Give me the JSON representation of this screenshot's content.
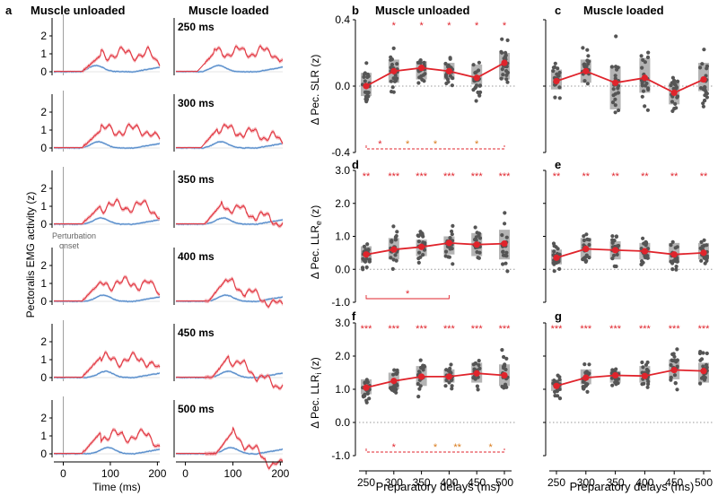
{
  "colors": {
    "unloaded_trace": "#e0303a",
    "unloaded_band": "#f2a0a6",
    "loaded_trace": "#4f86c6",
    "loaded_band": "#a8c6e8",
    "box": "#b4b4b4",
    "dot": "#555555",
    "mean_line": "#e0242c",
    "sig_red": "#e0242c",
    "sig_orange": "#d97a1a",
    "zero_line": "#999999"
  },
  "panel_a": {
    "letter": "a",
    "col_titles": [
      "Muscle unloaded",
      "Muscle loaded"
    ],
    "ylabel": "Pectoralis EMG activity (z)",
    "xlabel": "Time (ms)",
    "yticks": [
      "0",
      "1",
      "2"
    ],
    "xticks": [
      "0",
      "100",
      "200"
    ],
    "annotation": [
      "Perturbation",
      "onset"
    ],
    "delays": [
      "250 ms",
      "300 ms",
      "350 ms",
      "400 ms",
      "450 ms",
      "500 ms"
    ],
    "onset_ms_loaded": [
      20,
      10,
      10,
      10,
      10,
      10
    ]
  },
  "chart_data": [
    {
      "panel": "b",
      "type": "box+scatter+line",
      "title": "Muscle unloaded",
      "ylabel": "Δ Pec. SLR (z)",
      "ylim": [
        -0.4,
        0.4
      ],
      "yticks": [
        "-0.4",
        "0.0",
        "0.4"
      ],
      "categories": [
        "250",
        "300",
        "350",
        "400",
        "450",
        "500"
      ],
      "means": [
        0.0,
        0.09,
        0.11,
        0.09,
        0.05,
        0.14
      ],
      "box_q1": [
        -0.06,
        0.02,
        0.04,
        0.04,
        0.01,
        0.04
      ],
      "box_q3": [
        0.08,
        0.16,
        0.15,
        0.14,
        0.13,
        0.2
      ],
      "stars": [
        "",
        "*",
        "*",
        "*",
        "*",
        "*"
      ],
      "bracket_stars": [
        "*",
        "*",
        "*",
        "*"
      ]
    },
    {
      "panel": "c",
      "type": "box+scatter+line",
      "title": "Muscle loaded",
      "ylim": [
        -0.4,
        0.4
      ],
      "categories": [
        "250",
        "300",
        "350",
        "400",
        "450",
        "500"
      ],
      "means": [
        0.03,
        0.09,
        0.02,
        0.05,
        -0.04,
        0.04
      ],
      "box_q1": [
        -0.02,
        0.02,
        -0.14,
        -0.04,
        -0.11,
        -0.03
      ],
      "box_q3": [
        0.1,
        0.16,
        0.12,
        0.17,
        0.02,
        0.14
      ],
      "stars": [
        "",
        "",
        "",
        "",
        "",
        ""
      ]
    },
    {
      "panel": "d",
      "type": "box+scatter+line",
      "ylabel": "Δ Pec. LLR",
      "ylabel_sub": "e",
      "ylabel_unit": " (z)",
      "ylim": [
        -1.0,
        3.0
      ],
      "yticks": [
        "-1.0",
        "0.0",
        "1.0",
        "2.0",
        "3.0"
      ],
      "categories": [
        "250",
        "300",
        "350",
        "400",
        "450",
        "500"
      ],
      "means": [
        0.45,
        0.6,
        0.68,
        0.8,
        0.75,
        0.78
      ],
      "box_q1": [
        0.2,
        0.3,
        0.4,
        0.45,
        0.4,
        0.3
      ],
      "box_q3": [
        0.7,
        0.95,
        0.9,
        1.0,
        1.1,
        1.2
      ],
      "stars": [
        "**",
        "***",
        "***",
        "***",
        "***",
        "***"
      ],
      "bracket_stars": [
        "*"
      ]
    },
    {
      "panel": "e",
      "type": "box+scatter+line",
      "ylim": [
        -1.0,
        3.0
      ],
      "categories": [
        "250",
        "300",
        "350",
        "400",
        "450",
        "500"
      ],
      "means": [
        0.35,
        0.62,
        0.58,
        0.55,
        0.45,
        0.5
      ],
      "box_q1": [
        0.15,
        0.35,
        0.3,
        0.3,
        0.2,
        0.3
      ],
      "box_q3": [
        0.6,
        0.95,
        0.85,
        0.8,
        0.8,
        0.8
      ],
      "stars": [
        "**",
        "**",
        "**",
        "**",
        "**",
        "**"
      ]
    },
    {
      "panel": "f",
      "type": "box+scatter+line",
      "ylabel": "Δ Pec. LLR",
      "ylabel_sub": "i",
      "ylabel_unit": " (z)",
      "ylim": [
        -1.0,
        3.0
      ],
      "yticks": [
        "-1.0",
        "0.0",
        "1.0",
        "2.0",
        "3.0"
      ],
      "categories": [
        "250",
        "300",
        "350",
        "400",
        "450",
        "500"
      ],
      "means": [
        1.05,
        1.25,
        1.38,
        1.38,
        1.48,
        1.42
      ],
      "box_q1": [
        0.85,
        1.0,
        1.1,
        1.2,
        1.2,
        1.1
      ],
      "box_q3": [
        1.3,
        1.5,
        1.7,
        1.6,
        1.8,
        1.75
      ],
      "stars": [
        "***",
        "***",
        "***",
        "***",
        "***",
        "***"
      ],
      "bracket_stars": [
        "*",
        "*",
        "**",
        "*"
      ],
      "xlabel": "Preparatory delays (ms)"
    },
    {
      "panel": "g",
      "type": "box+scatter+line",
      "ylim": [
        -1.0,
        3.0
      ],
      "categories": [
        "250",
        "300",
        "350",
        "400",
        "450",
        "500"
      ],
      "means": [
        1.1,
        1.35,
        1.42,
        1.4,
        1.58,
        1.55
      ],
      "box_q1": [
        0.95,
        1.15,
        1.2,
        1.2,
        1.3,
        1.2
      ],
      "box_q3": [
        1.3,
        1.6,
        1.55,
        1.7,
        1.9,
        1.8
      ],
      "stars": [
        "***",
        "***",
        "***",
        "***",
        "***",
        "***"
      ],
      "xlabel": "Preparatory delays (ms)"
    }
  ]
}
